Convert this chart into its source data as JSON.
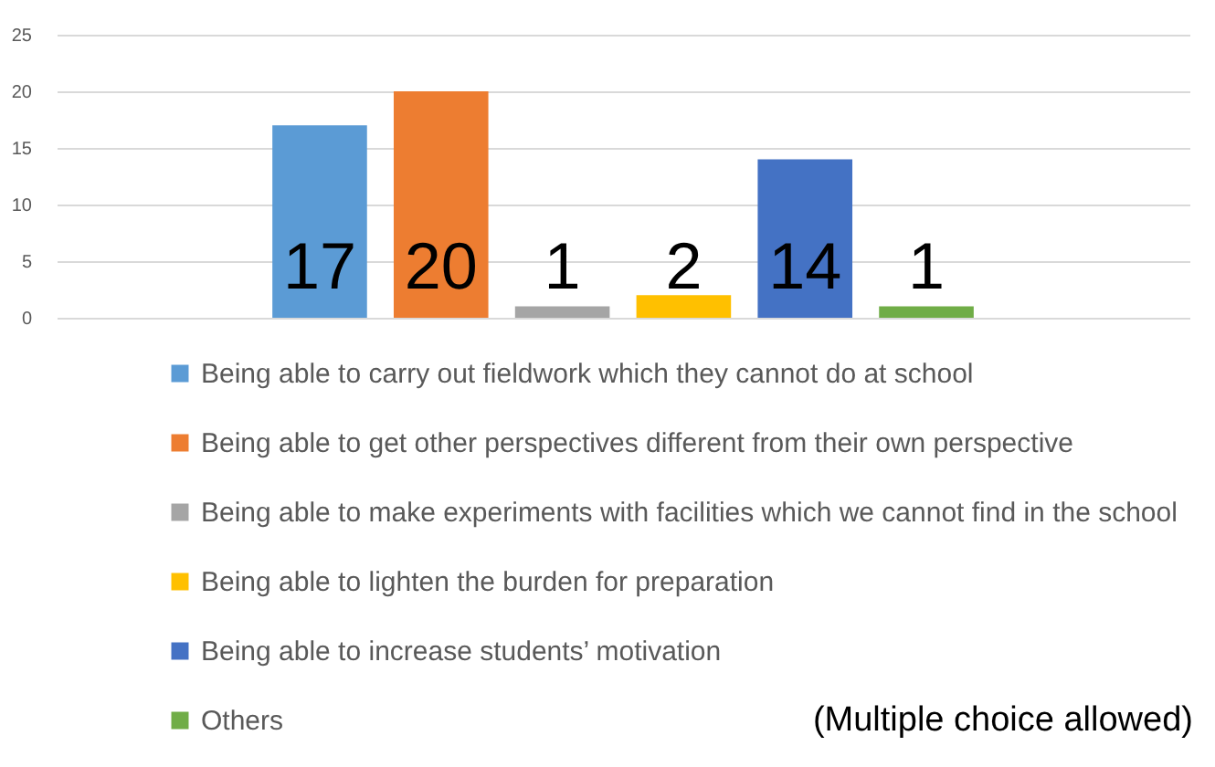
{
  "chart_data": {
    "type": "bar",
    "categories": [
      null
    ],
    "series": [
      {
        "name": "Being able to carry out fieldwork which they cannot do at school",
        "color": "#5b9bd5",
        "values": [
          17
        ]
      },
      {
        "name": "Being able to get other perspectives different from their own perspective",
        "color": "#ed7d31",
        "values": [
          20
        ]
      },
      {
        "name": "Being able to make experiments with facilities which we cannot find in the school",
        "color": "#a5a5a5",
        "values": [
          1
        ]
      },
      {
        "name": "Being able to lighten the burden for preparation",
        "color": "#ffc000",
        "values": [
          2
        ]
      },
      {
        "name": "Being able to increase students’ motivation",
        "color": "#4472c4",
        "values": [
          14
        ]
      },
      {
        "name": "Others",
        "color": "#70ad47",
        "values": [
          1
        ]
      }
    ],
    "ylim": [
      0,
      25
    ],
    "yticks": [
      0,
      5,
      10,
      15,
      20,
      25
    ],
    "grid": "y",
    "legend": "bottom",
    "tick_labels": "y",
    "data_labels": true,
    "annotations": [
      "(Multiple choice allowed)"
    ]
  }
}
